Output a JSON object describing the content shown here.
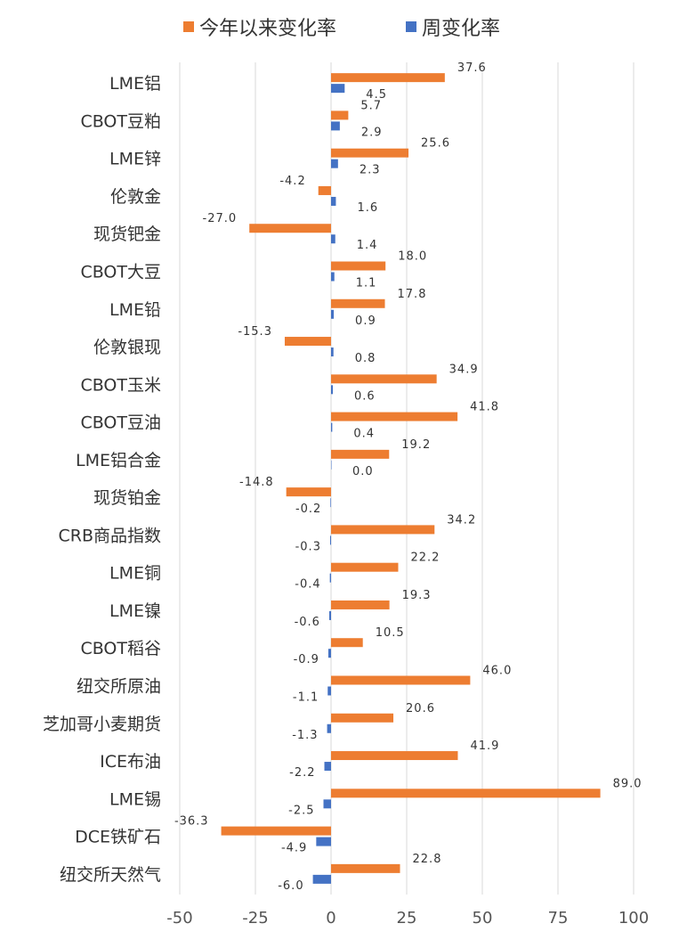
{
  "chart_data": {
    "type": "bar",
    "orientation": "horizontal",
    "categories": [
      "LME铝",
      "CBOT豆粕",
      "LME锌",
      "伦敦金",
      "现货钯金",
      "CBOT大豆",
      "LME铅",
      "伦敦银现",
      "CBOT玉米",
      "CBOT豆油",
      "LME铝合金",
      "现货铂金",
      "CRB商品指数",
      "LME铜",
      "LME镍",
      "CBOT稻谷",
      "纽交所原油",
      "芝加哥小麦期货",
      "ICE布油",
      "LME锡",
      "DCE铁矿石",
      "纽交所天然气"
    ],
    "series": [
      {
        "name": "今年以来变化率",
        "color": "#ED7D31",
        "values": [
          37.6,
          5.7,
          25.6,
          -4.2,
          -27.0,
          18.0,
          17.8,
          -15.3,
          34.9,
          41.8,
          19.2,
          -14.8,
          34.2,
          22.2,
          19.3,
          10.5,
          46.0,
          20.6,
          41.9,
          89.0,
          -36.3,
          22.8
        ],
        "labels": [
          "37.6",
          "5.7",
          "25.6",
          "-4.2",
          "-27.0",
          "18.0",
          "17.8",
          "-15.3",
          "34.9",
          "41.8",
          "19.2",
          "-14.8",
          "34.2",
          "22.2",
          "19.3",
          "10.5",
          "46.0",
          "20.6",
          "41.9",
          "89.0",
          "-36.3",
          "22.8"
        ]
      },
      {
        "name": "周变化率",
        "color": "#4472C4",
        "values": [
          4.5,
          2.9,
          2.3,
          1.6,
          1.4,
          1.1,
          0.9,
          0.8,
          0.6,
          0.4,
          0.0,
          -0.2,
          -0.3,
          -0.4,
          -0.6,
          -0.9,
          -1.1,
          -1.3,
          -2.2,
          -2.5,
          -4.9,
          -6.0
        ],
        "labels": [
          "4.5",
          "2.9",
          "2.3",
          "1.6",
          "1.4",
          "1.1",
          "0.9",
          "0.8",
          "0.6",
          "0.4",
          "0.0",
          "-0.2",
          "-0.3",
          "-0.4",
          "-0.6",
          "-0.9",
          "-1.1",
          "-1.3",
          "-2.2",
          "-2.5",
          "-4.9",
          "-6.0"
        ]
      }
    ],
    "xlim": [
      -50,
      100
    ],
    "xticks": [
      -50,
      -25,
      0,
      25,
      50,
      75,
      100
    ],
    "xtick_labels": [
      "-50",
      "-25",
      "0",
      "25",
      "50",
      "75",
      "100"
    ],
    "grid": true,
    "legend_position": "top-center"
  }
}
